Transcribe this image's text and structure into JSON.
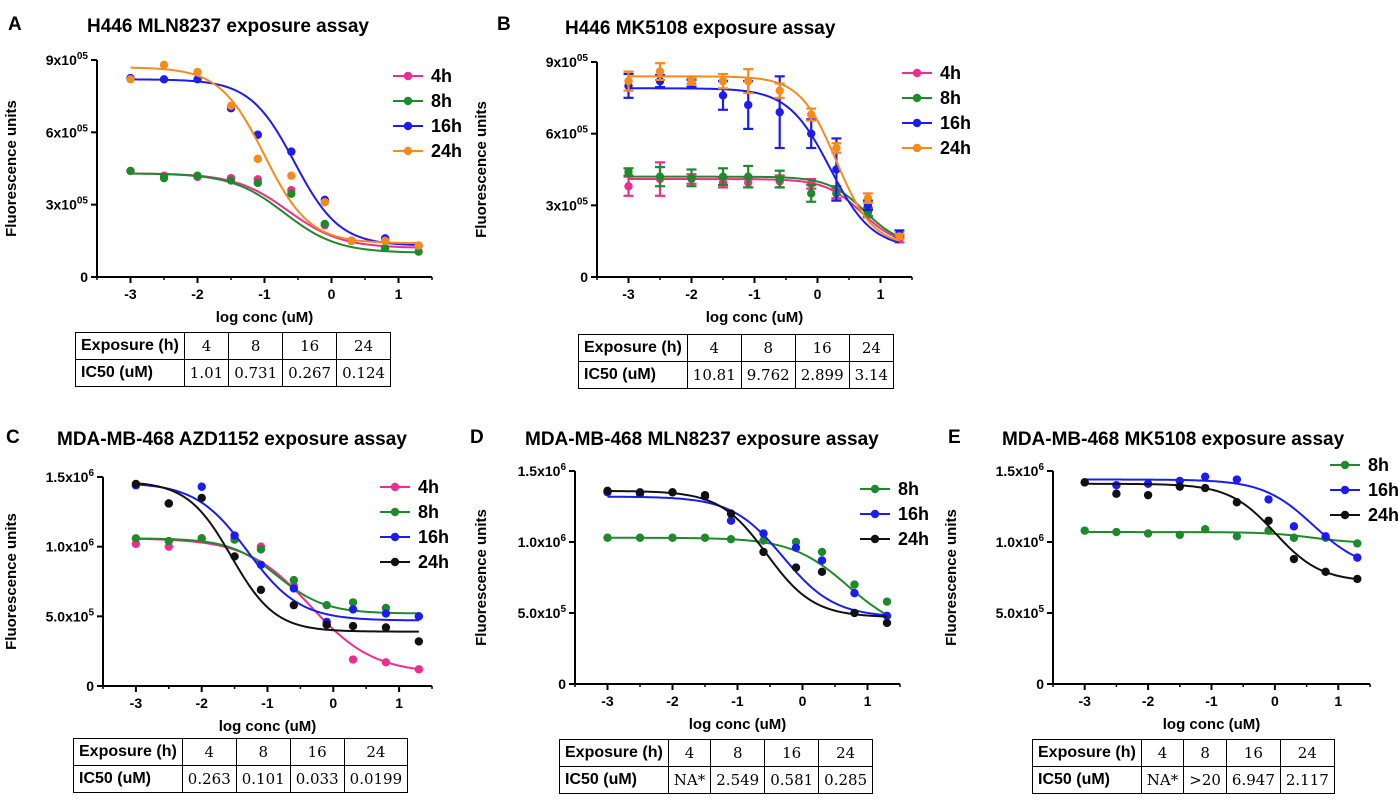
{
  "axis_xlabel": "log conc (uM)",
  "axis_ylabel": "Fluorescence units",
  "table_row_labels": {
    "exposure": "Exposure (h)",
    "ic50": "IC50 (uM)"
  },
  "panels": [
    {
      "label": "A",
      "title": "H446 MLN8237 exposure assay",
      "table": {
        "exposures": [
          "4",
          "8",
          "16",
          "24"
        ],
        "ic50": [
          "1.01",
          "0.731",
          "0.267",
          "0.124"
        ]
      }
    },
    {
      "label": "B",
      "title": "H446 MK5108 exposure assay",
      "table": {
        "exposures": [
          "4",
          "8",
          "16",
          "24"
        ],
        "ic50": [
          "10.81",
          "9.762",
          "2.899",
          "3.14"
        ]
      }
    },
    {
      "label": "C",
      "title": "MDA-MB-468 AZD1152 exposure assay",
      "table": {
        "exposures": [
          "4",
          "8",
          "16",
          "24"
        ],
        "ic50": [
          "0.263",
          "0.101",
          "0.033",
          "0.0199"
        ]
      }
    },
    {
      "label": "D",
      "title": "MDA-MB-468 MLN8237 exposure assay",
      "table": {
        "exposures": [
          "4",
          "8",
          "16",
          "24"
        ],
        "ic50": [
          "NA*",
          "2.549",
          "0.581",
          "0.285"
        ]
      }
    },
    {
      "label": "E",
      "title": "MDA-MB-468 MK5108 exposure assay",
      "table": {
        "exposures": [
          "4",
          "8",
          "16",
          "24"
        ],
        "ic50": [
          "NA*",
          ">20",
          "6.947",
          "2.117"
        ]
      }
    }
  ],
  "chart_data": [
    {
      "type": "scatter",
      "title": "H446 MLN8237 exposure assay",
      "xlabel": "log conc (uM)",
      "ylabel": "Fluorescence units",
      "xlim": [
        -3.5,
        1.5
      ],
      "ylim": [
        0,
        900000
      ],
      "xticks": [
        -3,
        -2,
        -1,
        0,
        1
      ],
      "xtick_labels": [
        "-3",
        "-2",
        "-1",
        "0",
        "1"
      ],
      "yticks": [
        0,
        300000,
        600000,
        900000
      ],
      "ytick_labels": [
        {
          "m": "0",
          "e": ""
        },
        {
          "m": "3x10",
          "e": "05"
        },
        {
          "m": "6x10",
          "e": "05"
        },
        {
          "m": "9x10",
          "e": "05"
        }
      ],
      "x": [
        -3,
        -2.5,
        -2,
        -1.5,
        -1.1,
        -0.6,
        -0.1,
        0.3,
        0.8,
        1.3
      ],
      "series": [
        {
          "name": "4h",
          "color": "#ec2f8f",
          "values": [
            440000,
            420000,
            415000,
            410000,
            405000,
            360000,
            215000,
            150000,
            160000,
            130000
          ],
          "fit": {
            "top": 430000,
            "bottom": 120000,
            "logic50": -0.65,
            "hill": 1.1
          }
        },
        {
          "name": "8h",
          "color": "#1f8a2b",
          "values": [
            440000,
            410000,
            420000,
            400000,
            390000,
            345000,
            220000,
            150000,
            120000,
            105000
          ],
          "fit": {
            "top": 430000,
            "bottom": 100000,
            "logic50": -0.7,
            "hill": 1.1
          }
        },
        {
          "name": "16h",
          "color": "#1c1cf0",
          "values": [
            825000,
            820000,
            820000,
            700000,
            590000,
            520000,
            320000,
            150000,
            160000,
            130000
          ],
          "fit": {
            "top": 820000,
            "bottom": 130000,
            "logic50": -0.55,
            "hill": 1.3
          }
        },
        {
          "name": "24h",
          "color": "#f58b1f",
          "values": [
            820000,
            880000,
            850000,
            710000,
            490000,
            420000,
            310000,
            150000,
            150000,
            130000
          ],
          "fit": {
            "top": 870000,
            "bottom": 140000,
            "logic50": -1.0,
            "hill": 1.3
          }
        }
      ]
    },
    {
      "type": "scatter",
      "title": "H446 MK5108 exposure assay",
      "xlabel": "log conc (uM)",
      "ylabel": "Fluorescence units",
      "xlim": [
        -3.5,
        1.5
      ],
      "ylim": [
        0,
        900000
      ],
      "xticks": [
        -3,
        -2,
        -1,
        0,
        1
      ],
      "xtick_labels": [
        "-3",
        "-2",
        "-1",
        "0",
        "1"
      ],
      "yticks": [
        0,
        300000,
        600000,
        900000
      ],
      "ytick_labels": [
        {
          "m": "0",
          "e": ""
        },
        {
          "m": "3x10",
          "e": "05"
        },
        {
          "m": "6x10",
          "e": "05"
        },
        {
          "m": "9x10",
          "e": "05"
        }
      ],
      "x": [
        -3,
        -2.5,
        -2,
        -1.5,
        -1.1,
        -0.6,
        -0.1,
        0.3,
        0.8,
        1.3
      ],
      "series": [
        {
          "name": "4h",
          "color": "#ec2f8f",
          "values": [
            380000,
            410000,
            410000,
            395000,
            395000,
            400000,
            390000,
            350000,
            270000,
            160000
          ],
          "errors": [
            40000,
            70000,
            20000,
            20000,
            20000,
            25000,
            20000,
            20000,
            20000,
            15000
          ],
          "fit": {
            "top": 410000,
            "bottom": 130000,
            "logic50": 0.7,
            "hill": 1.5
          }
        },
        {
          "name": "8h",
          "color": "#1f8a2b",
          "values": [
            440000,
            420000,
            415000,
            420000,
            420000,
            410000,
            350000,
            350000,
            270000,
            170000
          ],
          "errors": [
            15000,
            40000,
            35000,
            35000,
            45000,
            35000,
            35000,
            30000,
            15000,
            10000
          ],
          "fit": {
            "top": 420000,
            "bottom": 130000,
            "logic50": 0.75,
            "hill": 1.5
          }
        },
        {
          "name": "16h",
          "color": "#1c1cf0",
          "values": [
            800000,
            820000,
            810000,
            760000,
            720000,
            690000,
            600000,
            450000,
            300000,
            180000
          ],
          "errors": [
            50000,
            25000,
            15000,
            60000,
            100000,
            150000,
            60000,
            130000,
            20000,
            15000
          ],
          "fit": {
            "top": 790000,
            "bottom": 120000,
            "logic50": 0.2,
            "hill": 1.3
          }
        },
        {
          "name": "24h",
          "color": "#f58b1f",
          "values": [
            820000,
            860000,
            820000,
            820000,
            820000,
            780000,
            680000,
            540000,
            330000,
            170000
          ],
          "errors": [
            40000,
            35000,
            15000,
            30000,
            50000,
            30000,
            25000,
            20000,
            20000,
            10000
          ],
          "fit": {
            "top": 840000,
            "bottom": 130000,
            "logic50": 0.3,
            "hill": 1.5
          }
        }
      ]
    },
    {
      "type": "scatter",
      "title": "MDA-MB-468 AZD1152 exposure assay",
      "xlabel": "log conc (uM)",
      "ylabel": "Fluorescence units",
      "xlim": [
        -3.5,
        1.5
      ],
      "ylim": [
        0,
        1500000
      ],
      "xticks": [
        -3,
        -2,
        -1,
        0,
        1
      ],
      "xtick_labels": [
        "-3",
        "-2",
        "-1",
        "0",
        "1"
      ],
      "yticks": [
        0,
        500000,
        1000000,
        1500000
      ],
      "ytick_labels": [
        {
          "m": "0",
          "e": ""
        },
        {
          "m": "5.0x10",
          "e": "5"
        },
        {
          "m": "1.0x10",
          "e": "6"
        },
        {
          "m": "1.5x10",
          "e": "6"
        }
      ],
      "x": [
        -3,
        -2.5,
        -2,
        -1.5,
        -1.1,
        -0.6,
        -0.1,
        0.3,
        0.8,
        1.3
      ],
      "series": [
        {
          "name": "4h",
          "color": "#ec2f8f",
          "values": [
            1020000,
            1000000,
            1060000,
            1060000,
            1000000,
            720000,
            440000,
            190000,
            170000,
            120000
          ],
          "fit": {
            "top": 1060000,
            "bottom": 90000,
            "logic50": -0.35,
            "hill": 0.9
          }
        },
        {
          "name": "8h",
          "color": "#1f8a2b",
          "values": [
            1060000,
            1040000,
            1060000,
            1050000,
            980000,
            760000,
            580000,
            600000,
            560000,
            500000
          ],
          "fit": {
            "top": 1060000,
            "bottom": 520000,
            "logic50": -0.85,
            "hill": 1.2
          }
        },
        {
          "name": "16h",
          "color": "#1c1cf0",
          "values": [
            1440000,
            1310000,
            1430000,
            1080000,
            870000,
            700000,
            460000,
            550000,
            520000,
            500000
          ],
          "fit": {
            "top": 1460000,
            "bottom": 470000,
            "logic50": -1.3,
            "hill": 1.1
          }
        },
        {
          "name": "24h",
          "color": "#111111",
          "values": [
            1450000,
            1310000,
            1350000,
            930000,
            690000,
            580000,
            440000,
            430000,
            420000,
            320000
          ],
          "fit": {
            "top": 1470000,
            "bottom": 390000,
            "logic50": -1.55,
            "hill": 1.3
          }
        }
      ]
    },
    {
      "type": "scatter",
      "title": "MDA-MB-468 MLN8237 exposure assay",
      "xlabel": "log conc (uM)",
      "ylabel": "Fluorescence units",
      "xlim": [
        -3.5,
        1.5
      ],
      "ylim": [
        0,
        1500000
      ],
      "xticks": [
        -3,
        -2,
        -1,
        0,
        1
      ],
      "xtick_labels": [
        "-3",
        "-2",
        "-1",
        "0",
        "1"
      ],
      "yticks": [
        0,
        500000,
        1000000,
        1500000
      ],
      "ytick_labels": [
        {
          "m": "0",
          "e": ""
        },
        {
          "m": "5.0x10",
          "e": "5"
        },
        {
          "m": "1.0x10",
          "e": "6"
        },
        {
          "m": "1.5x10",
          "e": "6"
        }
      ],
      "x": [
        -3,
        -2.5,
        -2,
        -1.5,
        -1.1,
        -0.6,
        -0.1,
        0.3,
        0.8,
        1.3
      ],
      "series": [
        {
          "name": "8h",
          "color": "#1f8a2b",
          "values": [
            1030000,
            1030000,
            1030000,
            1030000,
            1020000,
            1010000,
            1000000,
            930000,
            700000,
            580000
          ],
          "fit": {
            "top": 1030000,
            "bottom": 350000,
            "logic50": 0.7,
            "hill": 1.0
          }
        },
        {
          "name": "16h",
          "color": "#1c1cf0",
          "values": [
            1350000,
            1340000,
            1350000,
            1320000,
            1150000,
            1060000,
            960000,
            870000,
            640000,
            480000
          ],
          "fit": {
            "top": 1320000,
            "bottom": 470000,
            "logic50": -0.3,
            "hill": 1.1
          }
        },
        {
          "name": "24h",
          "color": "#111111",
          "values": [
            1360000,
            1350000,
            1350000,
            1330000,
            1200000,
            930000,
            820000,
            790000,
            500000,
            430000
          ],
          "fit": {
            "top": 1360000,
            "bottom": 470000,
            "logic50": -0.55,
            "hill": 1.2
          }
        }
      ]
    },
    {
      "type": "scatter",
      "title": "MDA-MB-468 MK5108 exposure assay",
      "xlabel": "log conc (uM)",
      "ylabel": "Fluorescence units",
      "xlim": [
        -3.5,
        1.5
      ],
      "ylim": [
        0,
        1500000
      ],
      "xticks": [
        -3,
        -2,
        -1,
        0,
        1
      ],
      "xtick_labels": [
        "-3",
        "-2",
        "-1",
        "0",
        "1"
      ],
      "yticks": [
        0,
        500000,
        1000000,
        1500000
      ],
      "ytick_labels": [
        {
          "m": "0",
          "e": ""
        },
        {
          "m": "5.0x10",
          "e": "5"
        },
        {
          "m": "1.0x10",
          "e": "6"
        },
        {
          "m": "1.5x10",
          "e": "6"
        }
      ],
      "x": [
        -3,
        -2.5,
        -2,
        -1.5,
        -1.1,
        -0.6,
        -0.1,
        0.3,
        0.8,
        1.3
      ],
      "series": [
        {
          "name": "8h",
          "color": "#1f8a2b",
          "values": [
            1080000,
            1070000,
            1060000,
            1050000,
            1090000,
            1040000,
            1080000,
            1030000,
            1030000,
            990000
          ],
          "fit": {
            "top": 1070000,
            "bottom": 990000,
            "logic50": 0.6,
            "hill": 1.2
          }
        },
        {
          "name": "16h",
          "color": "#1c1cf0",
          "values": [
            1420000,
            1400000,
            1410000,
            1430000,
            1460000,
            1440000,
            1300000,
            1110000,
            1040000,
            890000
          ],
          "fit": {
            "top": 1440000,
            "bottom": 800000,
            "logic50": 0.6,
            "hill": 1.1
          }
        },
        {
          "name": "24h",
          "color": "#111111",
          "values": [
            1420000,
            1340000,
            1330000,
            1390000,
            1380000,
            1280000,
            1150000,
            880000,
            790000,
            740000
          ],
          "fit": {
            "top": 1410000,
            "bottom": 720000,
            "logic50": 0.0,
            "hill": 1.2
          }
        }
      ]
    }
  ]
}
